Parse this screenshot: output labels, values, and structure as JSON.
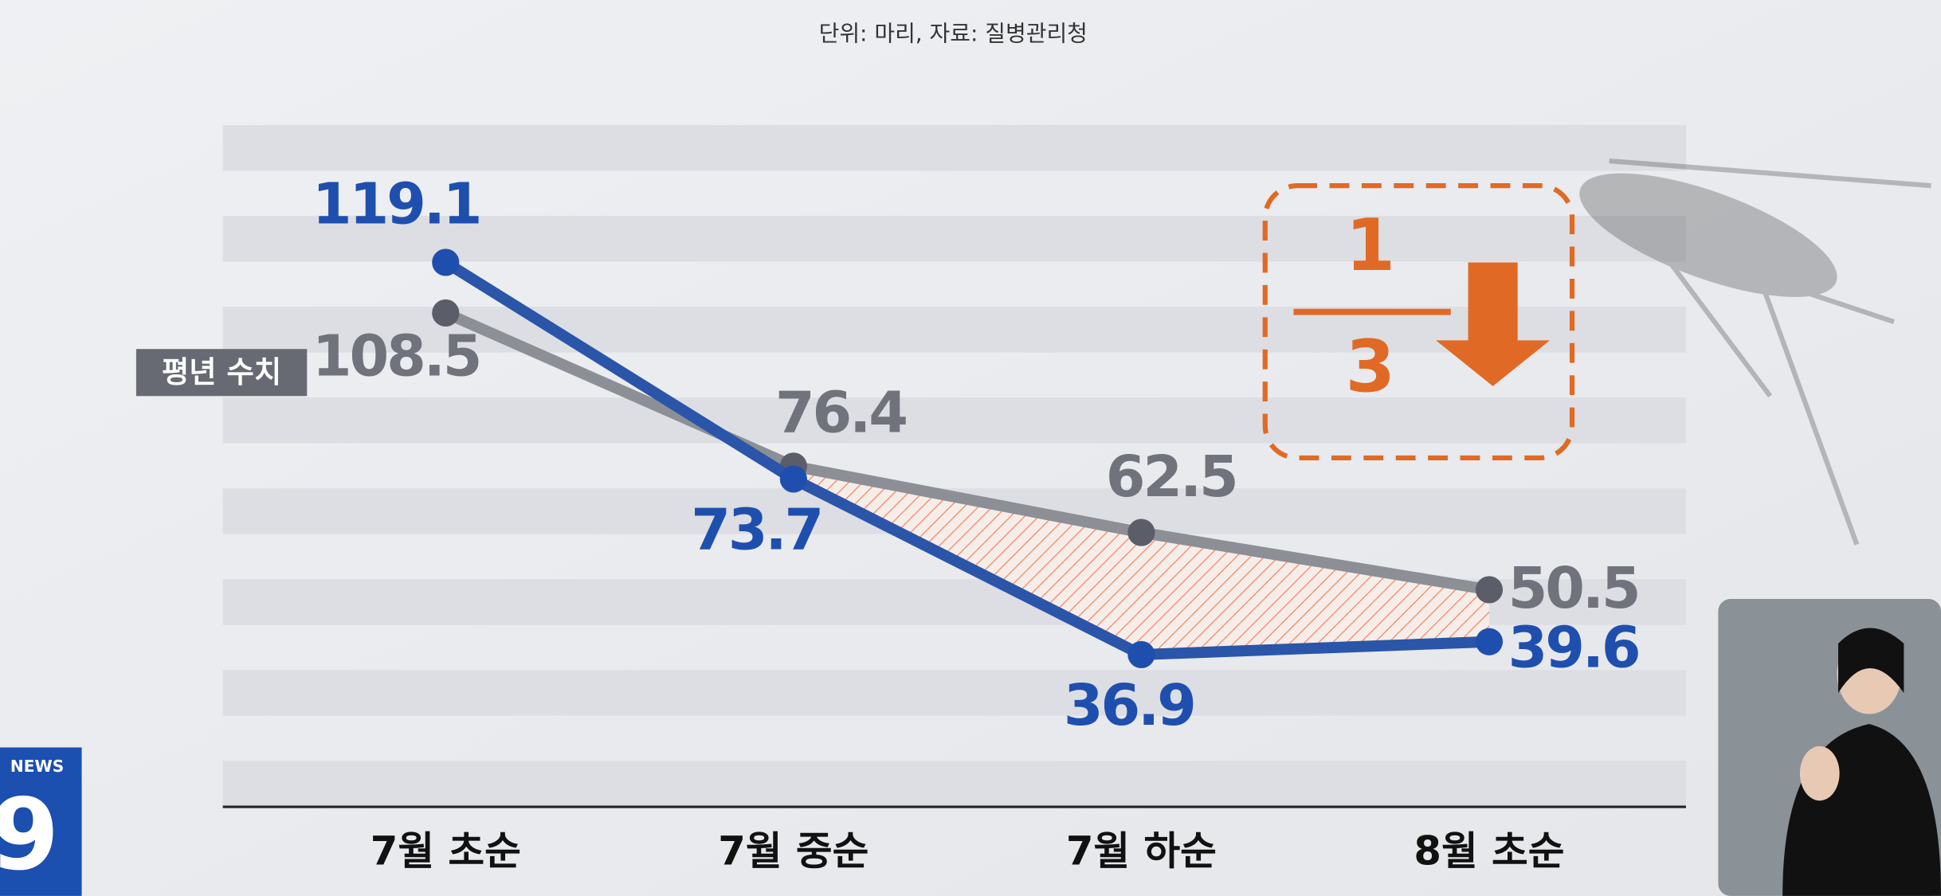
{
  "chart_data": {
    "type": "line",
    "subtitle": "단위: 마리, 자료: 질병관리청",
    "categories": [
      "7월 초순",
      "7월 중순",
      "7월 하순",
      "8월 초순"
    ],
    "series": [
      {
        "color": "#2a55a8",
        "values": [
          119.1,
          73.7,
          36.9,
          39.6
        ]
      },
      {
        "name": "평년 수치",
        "color": "#8c8f96",
        "values": [
          108.5,
          76.4,
          62.5,
          50.5
        ]
      }
    ],
    "annotation": {
      "numerator": "1",
      "denominator": "3",
      "color": "#e06a25"
    }
  },
  "logo": {
    "brand": "NEWS",
    "number": "9"
  }
}
